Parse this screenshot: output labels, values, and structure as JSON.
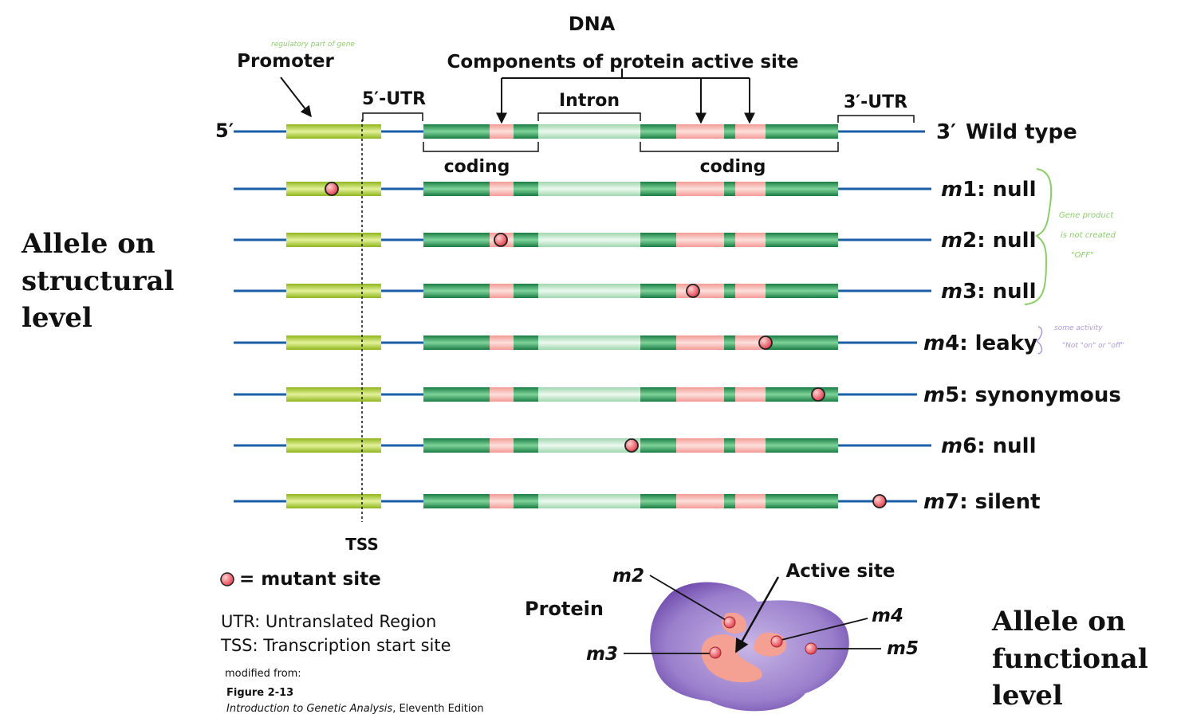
{
  "title": "DNA",
  "labels": {
    "promoter": "Promoter",
    "promoter_note": "regulatory part of gene",
    "active_site_components": "Components of protein active site",
    "utr5": "5′-UTR",
    "intron": "Intron",
    "utr3": "3′-UTR",
    "five_prime": "5′",
    "three_prime": "3′",
    "coding1": "coding",
    "coding2": "coding",
    "tss": "TSS"
  },
  "rows": [
    {
      "name": "Wild type",
      "prefix": "",
      "suffix": "Wild type",
      "mutation": null
    },
    {
      "name": "m1",
      "prefix": "m",
      "num": "1",
      "suffix": ": null",
      "mutation": "promoter"
    },
    {
      "name": "m2",
      "prefix": "m",
      "num": "2",
      "suffix": ": null",
      "mutation": "active-site-1"
    },
    {
      "name": "m3",
      "prefix": "m",
      "num": "3",
      "suffix": ": null",
      "mutation": "exon2-before-active-site"
    },
    {
      "name": "m4",
      "prefix": "m",
      "num": "4",
      "suffix": ": leaky",
      "mutation": "active-site-3"
    },
    {
      "name": "m5",
      "prefix": "m",
      "num": "5",
      "suffix": ": synonymous",
      "mutation": "exon2-end"
    },
    {
      "name": "m6",
      "prefix": "m",
      "num": "6",
      "suffix": ": null",
      "mutation": "intron-exon-junction"
    },
    {
      "name": "m7",
      "prefix": "m",
      "num": "7",
      "suffix": ": silent",
      "mutation": "downstream"
    }
  ],
  "notes": {
    "null_note": [
      "Gene product",
      "is not created",
      "\"OFF\""
    ],
    "leaky_note": [
      "some activity",
      "\"Not \"on\" or \"off\""
    ]
  },
  "left_label": [
    "Allele on",
    "structural",
    "level"
  ],
  "right_label": [
    "Allele on",
    "functional",
    "level"
  ],
  "legend": {
    "mutant_site": "= mutant site",
    "utr": "UTR: Untranslated Region",
    "tss": "TSS: Transcription start site",
    "modified_from": "modified from:",
    "figure": "Figure 2-13",
    "book_title": "Introduction to Genetic Analysis",
    "edition": ", Eleventh Edition"
  },
  "protein": {
    "label": "Protein",
    "active_site": "Active site",
    "m2": "m2",
    "m3": "m3",
    "m4": "m4",
    "m5": "m5"
  },
  "colors": {
    "dna_line": "#1a5fa8",
    "promoter": "#b5d334",
    "exon": "#2a9a5a",
    "intron": "#bfe6c8",
    "active_site": "#f7a8a0",
    "mutant": "#e8505a",
    "protein": "#8a6bbf",
    "note_green": "#8ccc6a",
    "note_purple": "#a99ad6"
  }
}
